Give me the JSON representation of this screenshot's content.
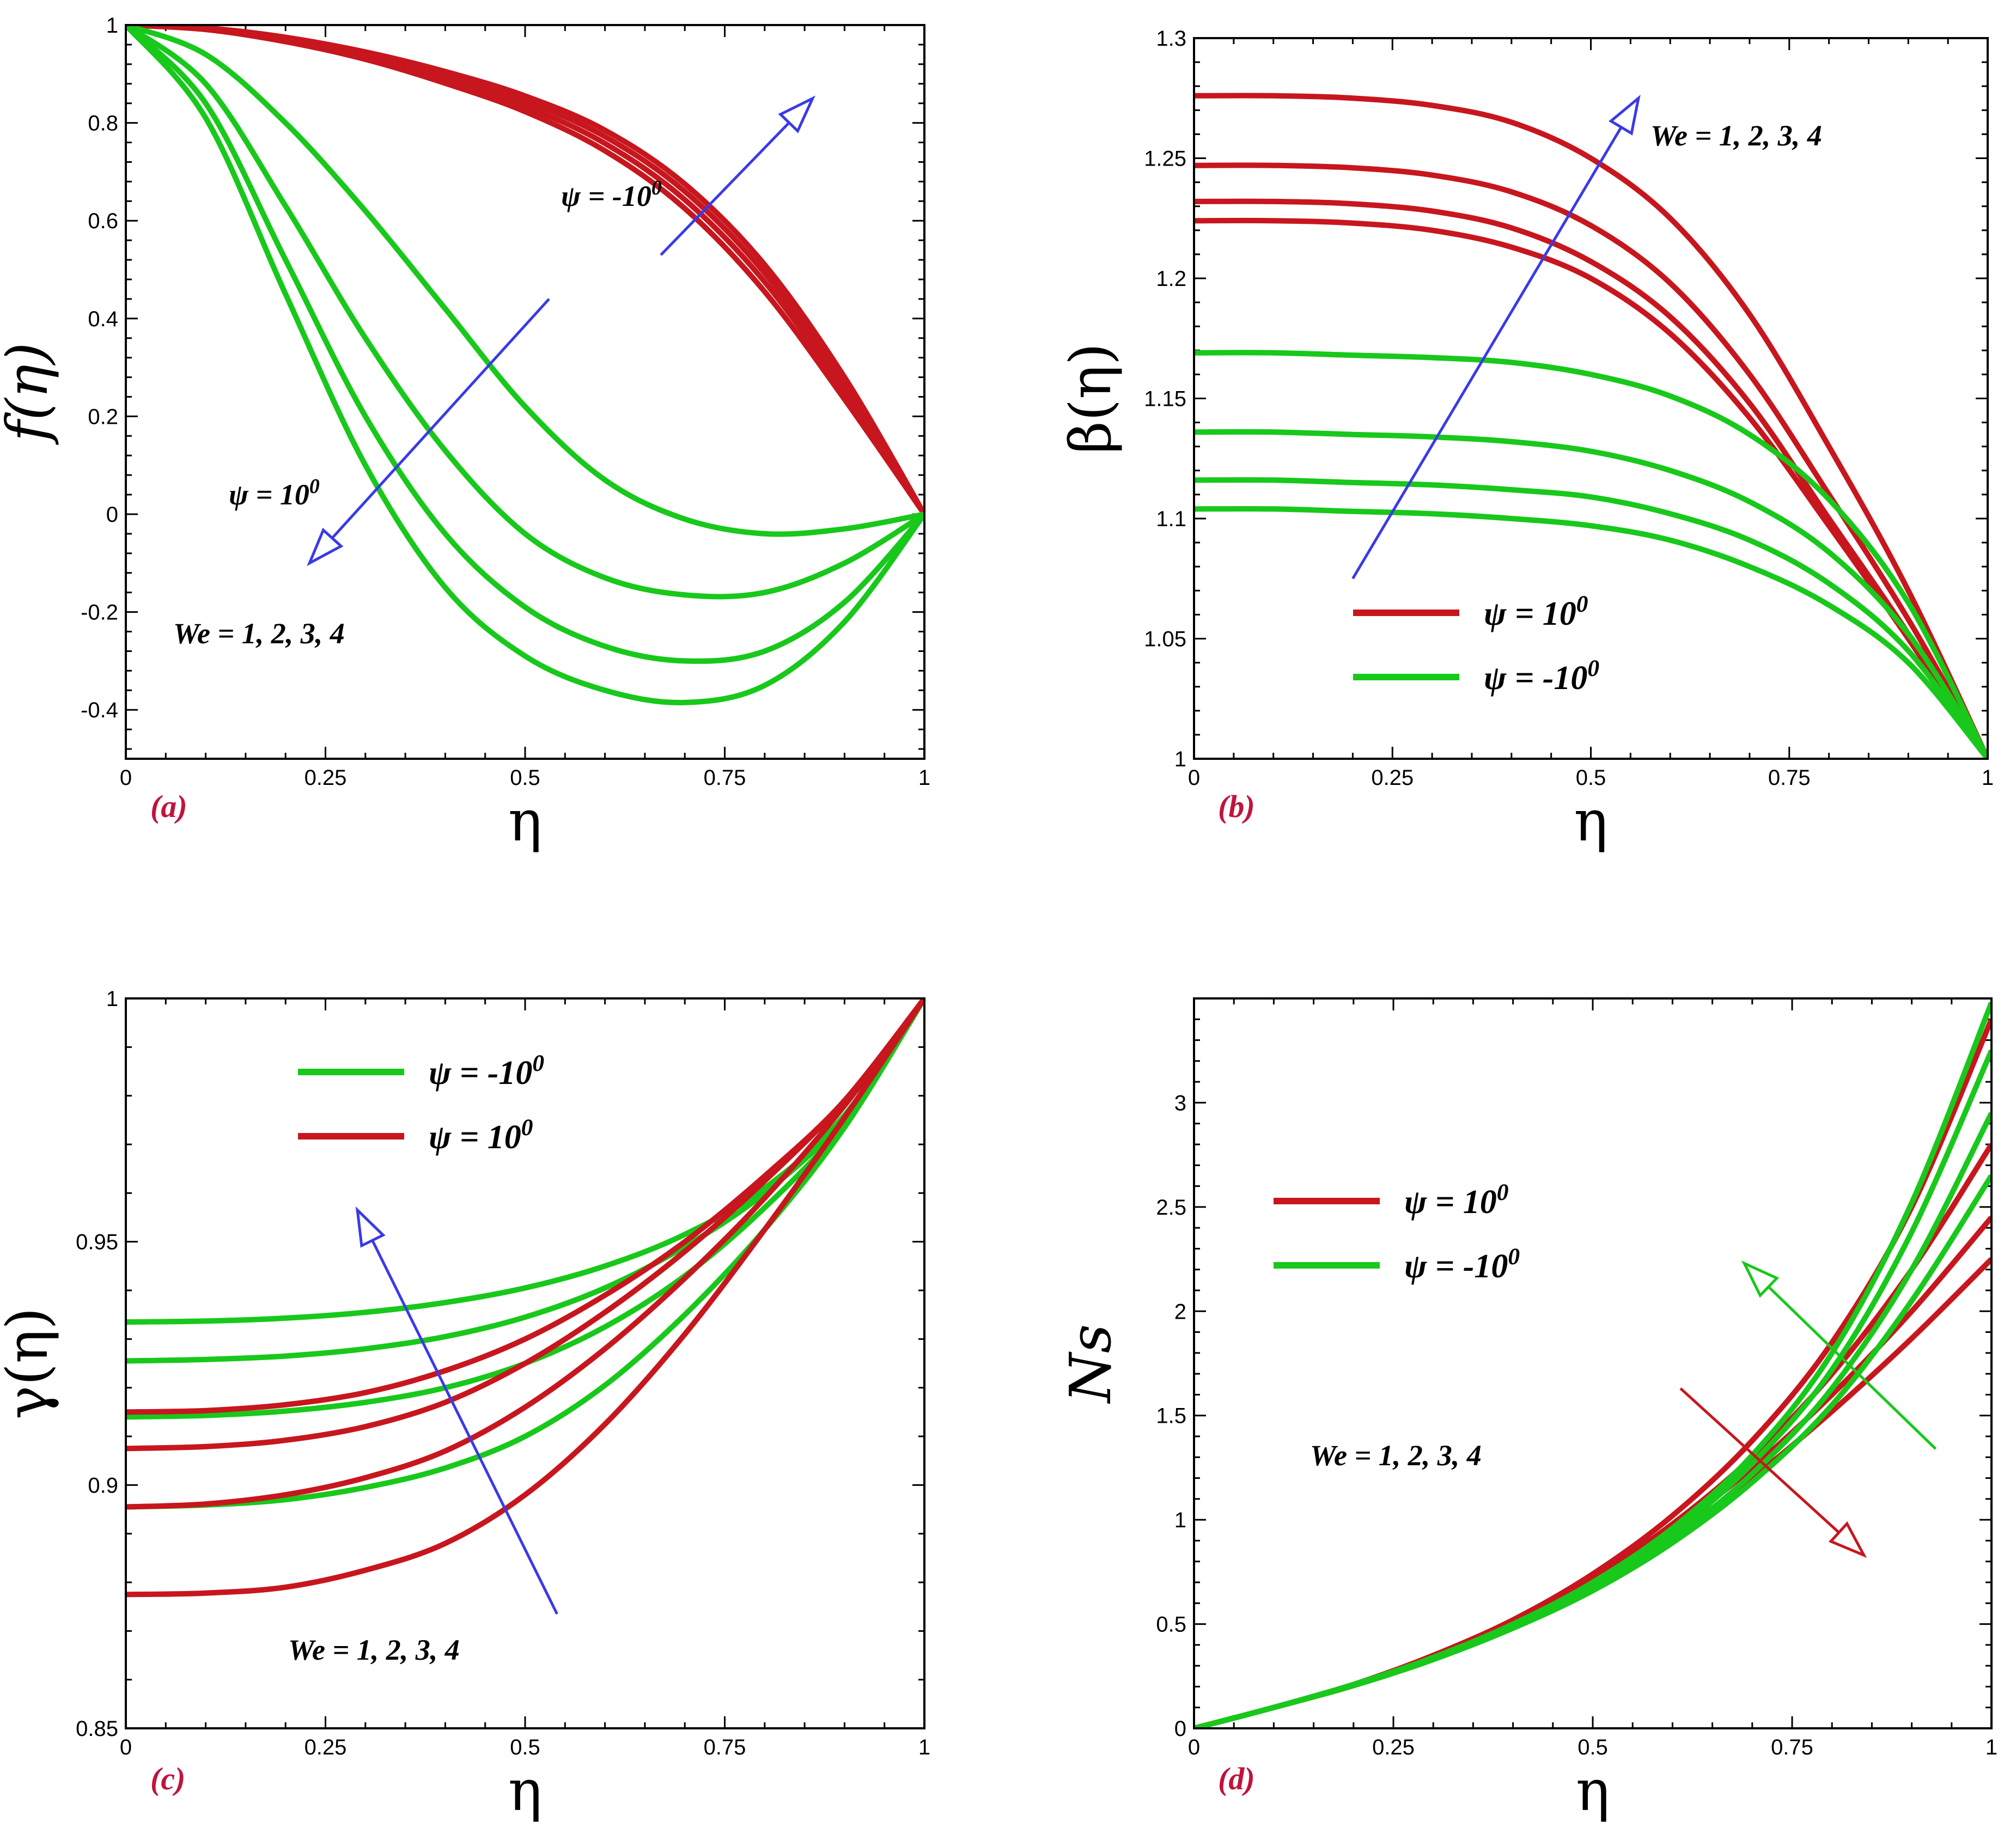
{
  "figure": {
    "x_symbol": "η",
    "colors": {
      "red": "#c8161e",
      "green": "#18c81b",
      "arrow_blue": "#3a3ae6",
      "panel_letter": "#c0143c"
    }
  },
  "chart_data": [
    {
      "id": "a",
      "type": "line",
      "panel_label": "(a)",
      "xlabel": "η",
      "ylabel": "f(η)",
      "xlim": [
        0,
        1
      ],
      "ylim": [
        -0.5,
        1
      ],
      "xticks": [
        "0",
        "0.25",
        "0.5",
        "0.75",
        "1"
      ],
      "yticks": [
        "-0.4",
        "-0.2",
        "0",
        "0.2",
        "0.4",
        "0.6",
        "0.8",
        "1"
      ],
      "x": [
        0,
        0.1,
        0.2,
        0.3,
        0.4,
        0.5,
        0.6,
        0.7,
        0.8,
        0.9,
        1.0
      ],
      "series": [
        {
          "name": "ψ = -10⁰, We = 1",
          "color": "red",
          "values": [
            1.0,
            0.994,
            0.975,
            0.945,
            0.905,
            0.855,
            0.785,
            0.675,
            0.51,
            0.28,
            0.0
          ]
        },
        {
          "name": "ψ = -10⁰, We = 2",
          "color": "red",
          "values": [
            1.0,
            0.993,
            0.972,
            0.94,
            0.897,
            0.845,
            0.772,
            0.66,
            0.493,
            0.265,
            0.0
          ]
        },
        {
          "name": "ψ = -10⁰, We = 3",
          "color": "red",
          "values": [
            1.0,
            0.992,
            0.969,
            0.935,
            0.889,
            0.834,
            0.758,
            0.643,
            0.475,
            0.25,
            0.0
          ]
        },
        {
          "name": "ψ = -10⁰, We = 4",
          "color": "red",
          "values": [
            1.0,
            0.991,
            0.966,
            0.93,
            0.881,
            0.823,
            0.743,
            0.625,
            0.455,
            0.235,
            0.0
          ]
        },
        {
          "name": "ψ = 10⁰, We = 1",
          "color": "green",
          "values": [
            1.0,
            0.94,
            0.8,
            0.62,
            0.42,
            0.22,
            0.07,
            -0.01,
            -0.04,
            -0.03,
            0.0
          ]
        },
        {
          "name": "ψ = 10⁰, We = 2",
          "color": "green",
          "values": [
            1.0,
            0.88,
            0.63,
            0.36,
            0.13,
            -0.04,
            -0.13,
            -0.165,
            -0.16,
            -0.1,
            0.0
          ]
        },
        {
          "name": "ψ = 10⁰, We = 3",
          "color": "green",
          "values": [
            1.0,
            0.84,
            0.52,
            0.2,
            -0.04,
            -0.19,
            -0.27,
            -0.3,
            -0.28,
            -0.18,
            0.0
          ]
        },
        {
          "name": "ψ = 10⁰, We = 4",
          "color": "green",
          "values": [
            1.0,
            0.81,
            0.45,
            0.1,
            -0.15,
            -0.29,
            -0.36,
            -0.385,
            -0.35,
            -0.22,
            0.0
          ]
        }
      ],
      "annotations": [
        {
          "text": "ψ = -10",
          "superscript": "0"
        },
        {
          "text": "ψ = 10",
          "superscript": "0"
        },
        {
          "text": "We = 1, 2, 3, 4",
          "superscript": ""
        }
      ],
      "arrows": [
        {
          "from": [
            0.67,
            0.53
          ],
          "to": [
            0.86,
            0.85
          ],
          "color": "arrow_blue"
        },
        {
          "from": [
            0.53,
            0.44
          ],
          "to": [
            0.23,
            -0.1
          ],
          "color": "arrow_blue"
        }
      ],
      "legend": []
    },
    {
      "id": "b",
      "type": "line",
      "panel_label": "(b)",
      "xlabel": "η",
      "ylabel": "β(η)",
      "xlim": [
        0,
        1
      ],
      "ylim": [
        1,
        1.3
      ],
      "xticks": [
        "0",
        "0.25",
        "0.5",
        "0.75",
        "1"
      ],
      "yticks": [
        "1",
        "1.05",
        "1.1",
        "1.15",
        "1.2",
        "1.25",
        "1.3"
      ],
      "x": [
        0,
        0.1,
        0.2,
        0.3,
        0.4,
        0.5,
        0.6,
        0.7,
        0.8,
        0.9,
        1.0
      ],
      "series": [
        {
          "name": "ψ = 10⁰, We = 4",
          "color": "red",
          "values": [
            1.276,
            1.276,
            1.275,
            1.272,
            1.265,
            1.25,
            1.225,
            1.185,
            1.13,
            1.07,
            1.0
          ]
        },
        {
          "name": "ψ = 10⁰, We = 3",
          "color": "red",
          "values": [
            1.247,
            1.247,
            1.246,
            1.243,
            1.236,
            1.222,
            1.198,
            1.16,
            1.11,
            1.058,
            1.0
          ]
        },
        {
          "name": "ψ = 10⁰, We = 2",
          "color": "red",
          "values": [
            1.232,
            1.232,
            1.231,
            1.228,
            1.221,
            1.207,
            1.184,
            1.148,
            1.1,
            1.052,
            1.0
          ]
        },
        {
          "name": "ψ = 10⁰, We = 1",
          "color": "red",
          "values": [
            1.224,
            1.224,
            1.223,
            1.22,
            1.213,
            1.2,
            1.177,
            1.142,
            1.097,
            1.05,
            1.0
          ]
        },
        {
          "name": "ψ = -10⁰, We = 4",
          "color": "green",
          "values": [
            1.169,
            1.169,
            1.168,
            1.167,
            1.165,
            1.16,
            1.151,
            1.135,
            1.108,
            1.065,
            1.0
          ]
        },
        {
          "name": "ψ = -10⁰, We = 3",
          "color": "green",
          "values": [
            1.136,
            1.136,
            1.135,
            1.134,
            1.132,
            1.128,
            1.12,
            1.107,
            1.086,
            1.052,
            1.0
          ]
        },
        {
          "name": "ψ = -10⁰, We = 2",
          "color": "green",
          "values": [
            1.116,
            1.116,
            1.115,
            1.114,
            1.112,
            1.109,
            1.102,
            1.091,
            1.073,
            1.045,
            1.0
          ]
        },
        {
          "name": "ψ = -10⁰, We = 1",
          "color": "green",
          "values": [
            1.104,
            1.104,
            1.103,
            1.102,
            1.1,
            1.097,
            1.091,
            1.08,
            1.064,
            1.04,
            1.0
          ]
        }
      ],
      "annotations": [
        {
          "text": "We = 1, 2, 3, 4",
          "superscript": ""
        }
      ],
      "arrows": [
        {
          "from": [
            0.2,
            1.075
          ],
          "to": [
            0.56,
            1.275
          ],
          "color": "arrow_blue"
        }
      ],
      "legend": [
        {
          "label": "ψ = 10",
          "superscript": "0",
          "color": "red"
        },
        {
          "label": "ψ = -10",
          "superscript": "0",
          "color": "green"
        }
      ]
    },
    {
      "id": "c",
      "type": "line",
      "panel_label": "(c)",
      "xlabel": "η",
      "ylabel": "γ(η)",
      "xlim": [
        0,
        1
      ],
      "ylim": [
        0.85,
        1
      ],
      "xticks": [
        "0",
        "0.25",
        "0.5",
        "0.75",
        "1"
      ],
      "yticks": [
        "0.85",
        "0.9",
        "0.95",
        "1"
      ],
      "x": [
        0,
        0.1,
        0.2,
        0.3,
        0.4,
        0.5,
        0.6,
        0.7,
        0.8,
        0.9,
        1.0
      ],
      "series": [
        {
          "name": "ψ = -10⁰, We = 1",
          "color": "green",
          "values": [
            0.9335,
            0.9337,
            0.9343,
            0.9355,
            0.9375,
            0.9405,
            0.945,
            0.9515,
            0.961,
            0.976,
            1.0
          ]
        },
        {
          "name": "ψ = -10⁰, We = 2",
          "color": "green",
          "values": [
            0.9255,
            0.9258,
            0.9265,
            0.928,
            0.9305,
            0.9345,
            0.9405,
            0.949,
            0.96,
            0.9755,
            1.0
          ]
        },
        {
          "name": "ψ = -10⁰, We = 3",
          "color": "green",
          "values": [
            0.914,
            0.9143,
            0.9152,
            0.917,
            0.92,
            0.925,
            0.9325,
            0.943,
            0.957,
            0.9745,
            1.0
          ]
        },
        {
          "name": "ψ = -10⁰, We = 4",
          "color": "green",
          "values": [
            0.8955,
            0.8959,
            0.897,
            0.8995,
            0.9035,
            0.91,
            0.9205,
            0.935,
            0.9525,
            0.9735,
            1.0
          ]
        },
        {
          "name": "ψ = 10⁰, We = 1",
          "color": "red",
          "values": [
            0.915,
            0.9153,
            0.9165,
            0.919,
            0.9235,
            0.93,
            0.939,
            0.95,
            0.9635,
            0.979,
            1.0
          ]
        },
        {
          "name": "ψ = 10⁰, We = 2",
          "color": "red",
          "values": [
            0.9075,
            0.9079,
            0.9092,
            0.912,
            0.917,
            0.925,
            0.9355,
            0.948,
            0.9625,
            0.979,
            1.0
          ]
        },
        {
          "name": "ψ = 10⁰, We = 3",
          "color": "red",
          "values": [
            0.8955,
            0.8961,
            0.898,
            0.9015,
            0.907,
            0.916,
            0.928,
            0.9425,
            0.959,
            0.978,
            1.0
          ]
        },
        {
          "name": "ψ = 10⁰, We = 4",
          "color": "red",
          "values": [
            0.8775,
            0.8778,
            0.879,
            0.8825,
            0.888,
            0.898,
            0.9125,
            0.931,
            0.9525,
            0.9755,
            1.0
          ]
        }
      ],
      "annotations": [
        {
          "text": "We = 1, 2, 3, 4",
          "superscript": ""
        }
      ],
      "arrows": [
        {
          "from": [
            0.54,
            0.8735
          ],
          "to": [
            0.29,
            0.9565
          ],
          "color": "arrow_blue"
        }
      ],
      "legend": [
        {
          "label": "ψ = -10",
          "superscript": "0",
          "color": "green"
        },
        {
          "label": "ψ = 10",
          "superscript": "0",
          "color": "red"
        }
      ]
    },
    {
      "id": "d",
      "type": "line",
      "panel_label": "(d)",
      "xlabel": "η",
      "ylabel": "Ns",
      "xlim": [
        0,
        1
      ],
      "ylim": [
        0,
        3.5
      ],
      "xticks": [
        "0",
        "0.25",
        "0.5",
        "0.75",
        "1"
      ],
      "yticks": [
        "0",
        "0.5",
        "1",
        "1.5",
        "2",
        "2.5",
        "3"
      ],
      "x": [
        0,
        0.1,
        0.2,
        0.3,
        0.4,
        0.5,
        0.6,
        0.7,
        0.8,
        0.9,
        1.0
      ],
      "series": [
        {
          "name": "ψ = 10⁰, We = 1",
          "color": "red",
          "values": [
            0.0,
            0.1,
            0.21,
            0.35,
            0.52,
            0.74,
            1.02,
            1.38,
            1.85,
            2.5,
            3.4
          ]
        },
        {
          "name": "ψ = 10⁰, We = 2",
          "color": "red",
          "values": [
            0.0,
            0.1,
            0.21,
            0.345,
            0.51,
            0.72,
            0.98,
            1.3,
            1.7,
            2.2,
            2.8
          ]
        },
        {
          "name": "ψ = 10⁰, We = 3",
          "color": "red",
          "values": [
            0.0,
            0.1,
            0.21,
            0.34,
            0.5,
            0.7,
            0.95,
            1.25,
            1.6,
            2.0,
            2.45
          ]
        },
        {
          "name": "ψ = 10⁰, We = 4",
          "color": "red",
          "values": [
            0.0,
            0.1,
            0.205,
            0.335,
            0.49,
            0.68,
            0.92,
            1.2,
            1.52,
            1.87,
            2.25
          ]
        },
        {
          "name": "ψ = -10⁰, We = 1",
          "color": "green",
          "values": [
            0.0,
            0.1,
            0.205,
            0.33,
            0.48,
            0.66,
            0.89,
            1.18,
            1.55,
            2.05,
            2.65
          ]
        },
        {
          "name": "ψ = -10⁰, We = 2",
          "color": "green",
          "values": [
            0.0,
            0.1,
            0.205,
            0.33,
            0.485,
            0.67,
            0.91,
            1.22,
            1.63,
            2.2,
            2.95
          ]
        },
        {
          "name": "ψ = -10⁰, We = 3",
          "color": "green",
          "values": [
            0.0,
            0.1,
            0.21,
            0.335,
            0.49,
            0.685,
            0.935,
            1.27,
            1.72,
            2.38,
            3.25
          ]
        },
        {
          "name": "ψ = -10⁰, We = 4",
          "color": "green",
          "values": [
            0.0,
            0.1,
            0.21,
            0.34,
            0.5,
            0.7,
            0.96,
            1.31,
            1.8,
            2.52,
            3.48
          ]
        }
      ],
      "annotations": [
        {
          "text": "We = 1, 2, 3, 4",
          "superscript": ""
        }
      ],
      "arrows": [
        {
          "from": [
            0.61,
            1.63
          ],
          "to": [
            0.84,
            0.83
          ],
          "color": "red"
        },
        {
          "from": [
            0.93,
            1.34
          ],
          "to": [
            0.69,
            2.23
          ],
          "color": "green"
        }
      ],
      "legend": [
        {
          "label": "ψ = 10",
          "superscript": "0",
          "color": "red"
        },
        {
          "label": "ψ = -10",
          "superscript": "0",
          "color": "green"
        }
      ]
    }
  ]
}
